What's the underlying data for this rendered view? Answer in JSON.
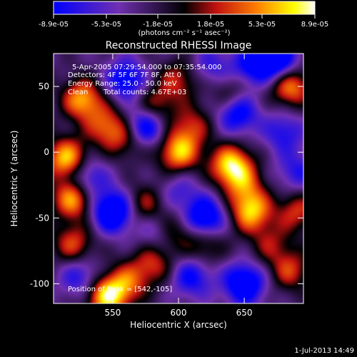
{
  "colorbar": {
    "ticks": [
      "-8.9e-05",
      "-5.3e-05",
      "-1.8e-05",
      "1.8e-05",
      "5.3e-05",
      "8.9e-05"
    ],
    "tick_values": [
      -8.9e-05,
      -5.3e-05,
      -1.8e-05,
      1.8e-05,
      5.3e-05,
      8.9e-05
    ],
    "range": [
      -8.9e-05,
      8.9e-05
    ],
    "units": "(photons cm⁻² s⁻¹ asec⁻²)",
    "colors": [
      "#0000ff",
      "#7030b0",
      "#000000",
      "#c01010",
      "#ff8000",
      "#ffff00",
      "#ffffff"
    ]
  },
  "info": {
    "time": "5-Apr-2005 07:29:54.000 to 07:35:54.000",
    "detectors": "Detectors: 4F 5F 6F 7F 8F, Att 0",
    "energy": "Energy Range: 25.0 - 50.0 keV",
    "clean": "Clean",
    "counts": "Total counts: 4.67E+03",
    "peak": "Position of Peak = [542,-105]"
  },
  "footer": {
    "date": "1-Jul-2013 14:49"
  },
  "chart_data": {
    "type": "heatmap",
    "title": "Reconstructed RHESSI Image",
    "xlabel": "Heliocentric X (arcsec)",
    "ylabel": "Heliocentric Y (arcsec)",
    "xlim": [
      505,
      695
    ],
    "ylim": [
      -115,
      75
    ],
    "xticks": [
      550,
      600,
      650
    ],
    "yticks": [
      50,
      0,
      -50,
      -100
    ],
    "peak": [
      542,
      -105
    ],
    "blobs": [
      {
        "x": 527,
        "y": 40,
        "v": 0.85
      },
      {
        "x": 515,
        "y": -5,
        "v": 0.95
      },
      {
        "x": 545,
        "y": 20,
        "v": 0.6
      },
      {
        "x": 560,
        "y": 10,
        "v": 0.45
      },
      {
        "x": 582,
        "y": 35,
        "v": 0.55
      },
      {
        "x": 600,
        "y": 55,
        "v": 0.5
      },
      {
        "x": 640,
        "y": 45,
        "v": 0.4
      },
      {
        "x": 685,
        "y": 50,
        "v": 0.8
      },
      {
        "x": 520,
        "y": -35,
        "v": 0.9
      },
      {
        "x": 600,
        "y": 0,
        "v": 0.9
      },
      {
        "x": 610,
        "y": 20,
        "v": 0.5
      },
      {
        "x": 640,
        "y": -10,
        "v": 1.0
      },
      {
        "x": 655,
        "y": -45,
        "v": 0.9
      },
      {
        "x": 650,
        "y": -25,
        "v": 0.5
      },
      {
        "x": 690,
        "y": -45,
        "v": 0.55
      },
      {
        "x": 575,
        "y": -40,
        "v": 0.5
      },
      {
        "x": 595,
        "y": -60,
        "v": 0.55
      },
      {
        "x": 620,
        "y": -70,
        "v": 0.45
      },
      {
        "x": 520,
        "y": -70,
        "v": 0.6
      },
      {
        "x": 580,
        "y": -85,
        "v": 0.55
      },
      {
        "x": 545,
        "y": -110,
        "v": 0.95
      },
      {
        "x": 560,
        "y": -100,
        "v": 0.6
      },
      {
        "x": 685,
        "y": -90,
        "v": 0.55
      },
      {
        "x": 670,
        "y": -70,
        "v": 0.4
      },
      {
        "x": 530,
        "y": -20,
        "v": -0.6
      },
      {
        "x": 550,
        "y": -45,
        "v": -1.0
      },
      {
        "x": 575,
        "y": 20,
        "v": -0.85
      },
      {
        "x": 560,
        "y": 55,
        "v": -0.7
      },
      {
        "x": 620,
        "y": -50,
        "v": -0.9
      },
      {
        "x": 645,
        "y": 30,
        "v": -0.75
      },
      {
        "x": 675,
        "y": 70,
        "v": -0.95
      },
      {
        "x": 655,
        "y": 65,
        "v": -0.6
      },
      {
        "x": 680,
        "y": 15,
        "v": -0.5
      },
      {
        "x": 625,
        "y": 65,
        "v": -0.4
      },
      {
        "x": 650,
        "y": -100,
        "v": -0.9
      },
      {
        "x": 610,
        "y": -95,
        "v": -0.6
      },
      {
        "x": 585,
        "y": -60,
        "v": -0.5
      },
      {
        "x": 525,
        "y": -95,
        "v": -0.5
      },
      {
        "x": 600,
        "y": -30,
        "v": -0.35
      },
      {
        "x": 690,
        "y": -15,
        "v": -0.45
      }
    ]
  }
}
